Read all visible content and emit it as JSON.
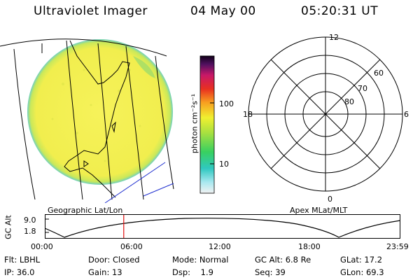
{
  "header": {
    "instrument": "Ultraviolet Imager",
    "date": "04 May 00",
    "time": "05:20:31 UT"
  },
  "colorbar": {
    "unit_label": "photon cm⁻²s⁻¹",
    "ticks": [
      "100",
      "10"
    ]
  },
  "panels": {
    "left_label": "Geographic Lat/Lon",
    "right_label": "Apex MLat/MLT"
  },
  "polar_grid": {
    "mlt_labels": {
      "top": "12",
      "left": "18",
      "right": "6",
      "bottom": "0"
    },
    "mlat_labels": [
      "80",
      "70",
      "60"
    ]
  },
  "timeline": {
    "ylabel": "GC Alt",
    "ytick_top": "9.0",
    "ytick_bottom": "1.8",
    "xticks": [
      "00:00",
      "06:00",
      "12:00",
      "18:00",
      "23:59"
    ],
    "current_time_fraction": 0.222,
    "colors": {
      "marker": "#e01010",
      "curve": "#000000"
    }
  },
  "info": {
    "row1": {
      "flt": "Flt: LBHL",
      "door": "Door: Closed",
      "mode": "Mode: Normal",
      "gcalt": "GC Alt: 6.8 Re",
      "glat": "GLat: 17.2"
    },
    "row2": {
      "ip": "IP: 36.0",
      "gain": "Gain: 13",
      "dsp": "Dsp:    1.9",
      "seq": "Seq: 39",
      "glon": "GLon: 69.3"
    }
  }
}
